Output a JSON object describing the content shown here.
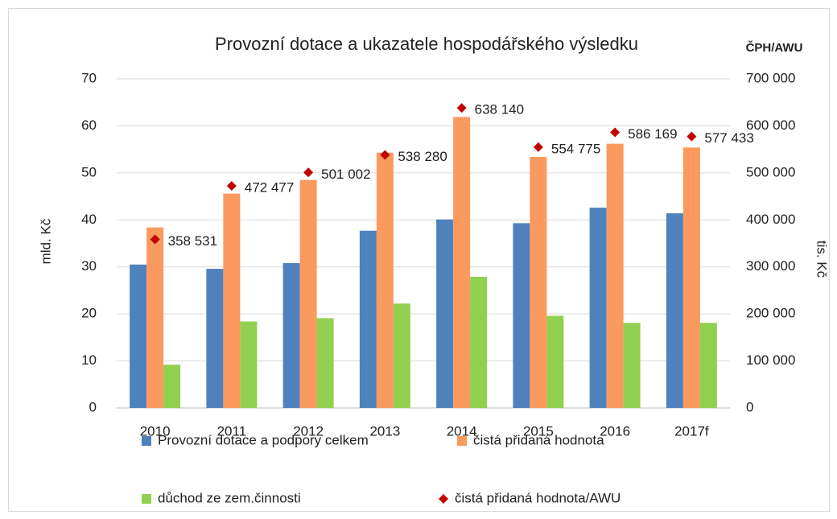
{
  "chart_data": {
    "type": "bar",
    "title": "Provozní dotace a ukazatele hospodářského výsledku",
    "y_label": "mld. Kč",
    "y2_label": "tis. Kč",
    "y2_title": "ČPH/AWU",
    "categories": [
      "2010",
      "2011",
      "2012",
      "2013",
      "2014",
      "2015",
      "2016",
      "2017f"
    ],
    "series": [
      {
        "name": "Provozní dotace a podpory celkem",
        "color": "#4f81bd",
        "values": [
          30.5,
          29.6,
          30.8,
          37.7,
          40.1,
          39.3,
          42.6,
          41.4
        ]
      },
      {
        "name": "čistá přidaná hodnota",
        "color": "#fb9a5e",
        "values": [
          38.4,
          45.6,
          48.5,
          54.3,
          61.9,
          53.4,
          56.2,
          55.4
        ]
      },
      {
        "name": "důchod ze zem.činnosti",
        "color": "#92d050",
        "values": [
          9.2,
          18.4,
          19.1,
          22.2,
          27.9,
          19.6,
          18.1,
          18.1
        ]
      },
      {
        "name": "čistá přidaná hodnota/AWU",
        "color": "#c00000",
        "type": "scatter",
        "axis": "y2",
        "values": [
          358531,
          472477,
          501002,
          538280,
          638140,
          554775,
          586169,
          577433
        ],
        "value_labels": [
          "358 531",
          "472 477",
          "501 002",
          "538 280",
          "638 140",
          "554 775",
          "586 169",
          "577 433"
        ]
      }
    ],
    "ylim": [
      0,
      70
    ],
    "yticks": [
      0,
      10,
      20,
      30,
      40,
      50,
      60,
      70
    ],
    "y2lim": [
      0,
      700000
    ],
    "y2ticks": [
      0,
      {
        "value": 100000,
        "label": "100 000"
      },
      {
        "value": 200000,
        "label": "200 000"
      },
      {
        "value": 300000,
        "label": "300 000"
      },
      {
        "value": 400000,
        "label": "400 000"
      },
      {
        "value": 500000,
        "label": "500 000"
      },
      {
        "value": 600000,
        "label": "600 000"
      },
      {
        "value": 700000,
        "label": "700 000"
      }
    ],
    "grid": true
  }
}
